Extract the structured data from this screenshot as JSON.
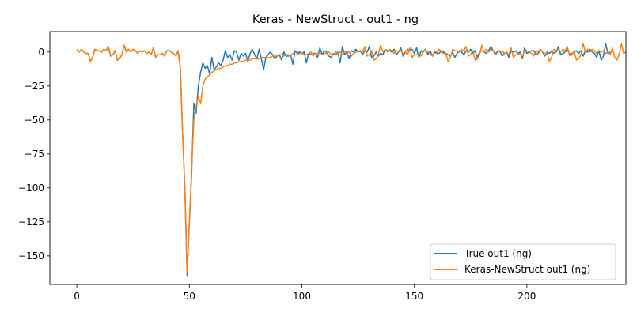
{
  "chart_data": {
    "type": "line",
    "title": "Keras - NewStruct - out1 - ng",
    "xlabel": "",
    "ylabel": "",
    "xlim": [
      -12,
      244
    ],
    "ylim": [
      -171,
      15
    ],
    "xticks": [
      0,
      50,
      100,
      150,
      200
    ],
    "yticks": [
      0,
      -25,
      -50,
      -75,
      -100,
      -125,
      -150
    ],
    "grid": false,
    "legend_position": "lower-right",
    "x_start": 0,
    "x_step": 1,
    "series": [
      {
        "name": "True out1 (ng)",
        "color": "#1f77b4",
        "values": [
          2,
          0,
          2,
          0,
          -1,
          -1,
          -7,
          -4,
          2,
          1,
          1,
          0,
          2,
          1,
          4,
          -3,
          -2,
          1,
          -6,
          -5,
          -2,
          5,
          0,
          2,
          0,
          2,
          1,
          -1,
          1,
          0,
          1,
          -1,
          0,
          -2,
          3,
          -4,
          -2,
          -2,
          -1,
          -3,
          1,
          1,
          0,
          -1,
          -3,
          1,
          -12,
          -60,
          -100,
          -165,
          -125,
          -90,
          -38,
          -45,
          -25,
          -15,
          -8,
          -12,
          -10,
          -16,
          -4,
          -13,
          -11,
          -8,
          -10,
          -6,
          1,
          -4,
          -2,
          -6,
          1,
          0,
          -6,
          -1,
          -3,
          -1,
          -7,
          -1,
          2,
          -2,
          -5,
          2,
          -5,
          -13,
          -4,
          -2,
          0,
          -2,
          -5,
          -3,
          -2,
          -6,
          0,
          -3,
          -3,
          -2,
          -9,
          1,
          -1,
          0,
          -1,
          0,
          -8,
          -1,
          -2,
          -1,
          -1,
          -4,
          3,
          -2,
          1,
          0,
          -3,
          -4,
          -1,
          -2,
          0,
          -8,
          4,
          -2,
          0,
          -5,
          1,
          0,
          2,
          0,
          1,
          -2,
          1,
          0,
          4,
          -4,
          -3,
          0,
          -3,
          -1,
          -2,
          2,
          1,
          1,
          0,
          2,
          -2,
          0,
          3,
          -3,
          0,
          2,
          1,
          2,
          -1,
          3,
          -4,
          1,
          0,
          2,
          -2,
          1,
          -3,
          0,
          -1,
          -1,
          1,
          0,
          -1,
          -2,
          -3,
          0,
          -4,
          -1,
          1,
          0,
          -2,
          1,
          0,
          2,
          -1,
          1,
          -4,
          0,
          1,
          0,
          -1,
          1,
          4,
          1,
          -2,
          0,
          1,
          -3,
          -1,
          0,
          -4,
          1,
          0,
          1,
          -1,
          0,
          -5,
          3,
          -1,
          0,
          1,
          1,
          -2,
          -1,
          2,
          0,
          -3,
          0,
          -1,
          1,
          -1,
          0,
          4,
          -2,
          -1,
          0,
          2,
          -2,
          -1,
          0,
          1,
          -1,
          1,
          -3,
          1,
          0,
          2,
          0,
          -1,
          -4,
          1,
          -6,
          -3,
          6,
          -1,
          0
        ],
        "values_note": ""
      },
      {
        "name": "Keras-NewStruct out1 (ng)",
        "color": "#ff7f0e",
        "values": [
          2,
          0,
          2,
          0,
          -1,
          -1,
          -7,
          -4,
          2,
          1,
          1,
          0,
          2,
          1,
          4,
          -3,
          -2,
          1,
          -6,
          -5,
          -2,
          5,
          0,
          2,
          0,
          2,
          1,
          -1,
          1,
          0,
          1,
          -1,
          0,
          -2,
          3,
          -4,
          -2,
          -2,
          -1,
          -3,
          1,
          1,
          0,
          -1,
          -3,
          1,
          -12,
          -60,
          -100,
          -163,
          -125,
          -85,
          -50,
          -40,
          -33,
          -38,
          -25,
          -20,
          -18,
          -17,
          -15,
          -14,
          -13,
          -12,
          -12,
          -11,
          -10,
          -10,
          -9,
          -9,
          -8,
          -8,
          -7,
          -7,
          -7,
          -6,
          -6,
          -6,
          -5,
          -5,
          -5,
          -5,
          -4,
          -4,
          -4,
          -4,
          -4,
          -3,
          -3,
          -3,
          -2,
          -2,
          -3,
          -2,
          -2,
          -3,
          -1,
          -2,
          -2,
          -1,
          -1,
          -2,
          -2,
          -1,
          0,
          -3,
          -1,
          -1,
          -2,
          -2,
          -1,
          -1,
          0,
          -2,
          -2,
          0,
          -1,
          0,
          -2,
          0,
          0,
          0,
          -3,
          -1,
          0,
          1,
          0,
          0,
          4,
          -3,
          -2,
          1,
          -6,
          -5,
          -2,
          5,
          0,
          2,
          0,
          2,
          1,
          -1,
          1,
          0,
          1,
          -1,
          0,
          -2,
          3,
          -4,
          -2,
          -2,
          -1,
          -3,
          1,
          1,
          0,
          -1,
          -3,
          1,
          0,
          2,
          0,
          -1,
          -1,
          -7,
          -4,
          2,
          1,
          1,
          0,
          2,
          1,
          4,
          -3,
          -2,
          1,
          -6,
          -5,
          -2,
          5,
          0,
          2,
          0,
          2,
          1,
          -1,
          1,
          0,
          1,
          -1,
          0,
          -2,
          3,
          -4,
          -2,
          -2,
          -1,
          -3,
          1,
          1,
          0,
          -1,
          -3,
          1,
          0,
          2,
          0,
          -1,
          -1,
          -7,
          -4,
          2,
          1,
          1,
          0,
          2,
          1,
          4,
          -3,
          -2,
          1,
          -6,
          -5,
          -2,
          6,
          0,
          2,
          0,
          2,
          1,
          -1,
          1,
          0,
          1,
          -1,
          0,
          -2,
          3,
          -4,
          -6,
          -2,
          6,
          -1,
          0
        ],
        "values_note": ""
      }
    ]
  }
}
